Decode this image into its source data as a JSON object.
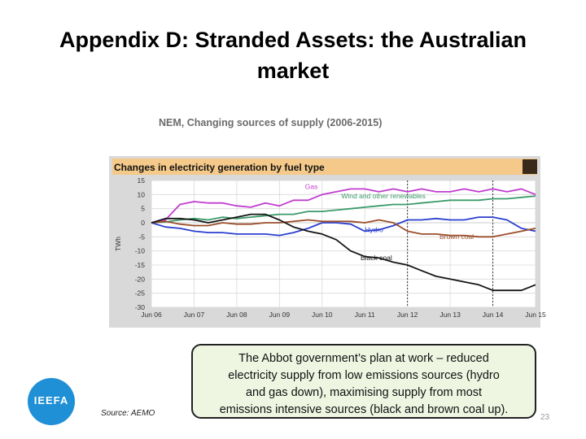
{
  "slide": {
    "title_line1": "Appendix D: Stranded Assets: the Australian",
    "title_line2": "market",
    "subtitle": "NEM, Changing sources of supply (2006-2015)",
    "callout_lines": [
      "The Abbot government’s plan at work – reduced",
      "electricity supply from low emissions sources (hydro",
      "and gas down), maximising supply from most",
      "emissions intensive sources (black and brown coal up)."
    ],
    "source": "Source: AEMO",
    "page_number": "23",
    "logo_text": "IEEFA"
  },
  "chart_data": {
    "type": "line",
    "title": "Changes in electricity generation by fuel type",
    "ylabel": "TWh",
    "xlabel": "",
    "categories": [
      "Jun 06",
      "Jun 07",
      "Jun 08",
      "Jun 09",
      "Jun 10",
      "Jun 11",
      "Jun 12",
      "Jun 13",
      "Jun 14",
      "Jun 15"
    ],
    "y_ticks": [
      15,
      10,
      5,
      0,
      -5,
      -10,
      -15,
      -20,
      -25,
      -30
    ],
    "ylim": [
      -30,
      15
    ],
    "grid": true,
    "x": [
      0,
      0.33,
      0.67,
      1,
      1.33,
      1.67,
      2,
      2.33,
      2.67,
      3,
      3.33,
      3.67,
      4,
      4.33,
      4.67,
      5,
      5.33,
      5.67,
      6,
      6.33,
      6.67,
      7,
      7.33,
      7.67,
      8,
      8.33,
      8.67,
      9
    ],
    "series": [
      {
        "name": "Gas",
        "color": "#c03ccf",
        "label_pos": [
          3.6,
          12.0
        ],
        "values": [
          0,
          1,
          6.5,
          7.5,
          7,
          7,
          6,
          5.5,
          7,
          6,
          8,
          8,
          10,
          11,
          12,
          12,
          11,
          12,
          11,
          12,
          11,
          11,
          12,
          11,
          12,
          11,
          12,
          10
        ]
      },
      {
        "name": "Wind and other renewables",
        "color": "#3a9a6a",
        "label_pos": [
          4.45,
          8.6
        ],
        "values": [
          0,
          0.3,
          1,
          1.5,
          1,
          2,
          1.5,
          2,
          2.5,
          3,
          3,
          4,
          4,
          4.5,
          5,
          5.5,
          6,
          6.5,
          6.5,
          7,
          7.5,
          8,
          8,
          8,
          8.5,
          8.5,
          9,
          9.5
        ]
      },
      {
        "name": "Hydro",
        "color": "#2a3fcf",
        "label_pos": [
          5.0,
          -3.3
        ],
        "values": [
          0,
          -1.5,
          -2,
          -3,
          -3.5,
          -3.5,
          -4,
          -4,
          -4,
          -4.5,
          -3.5,
          -2,
          0,
          0,
          -0.5,
          -3,
          -2.5,
          -1,
          1,
          1,
          1.5,
          1,
          1,
          2,
          2,
          1,
          -2,
          -3
        ]
      },
      {
        "name": "Brown coal",
        "color": "#9a4e2a",
        "label_pos": [
          6.75,
          -5.8
        ],
        "values": [
          0,
          0.5,
          -0.5,
          -1,
          -1,
          0,
          -0.5,
          -0.5,
          0,
          0,
          0.5,
          1,
          0.5,
          0.5,
          0.5,
          0,
          1,
          0,
          -3,
          -4,
          -4,
          -4.5,
          -4.5,
          -5,
          -5,
          -4,
          -3,
          -2
        ]
      },
      {
        "name": "Black coal",
        "color": "#151515",
        "label_pos": [
          4.9,
          -13.2
        ],
        "values": [
          0,
          1.5,
          1.5,
          1,
          0,
          1,
          2,
          3,
          3,
          1,
          -1.5,
          -3,
          -4,
          -6,
          -10,
          -12,
          -12.5,
          -14,
          -15,
          -17,
          -19,
          -20,
          -21,
          -22,
          -24,
          -24,
          -24,
          -22
        ]
      }
    ],
    "vlines": [
      "Jun 12",
      "Jun 14"
    ],
    "colors": {
      "plot_bg": "#ffffff",
      "frame_bg": "#d9d9d9",
      "title_band": "#f4c98a",
      "grid": "#d8d8d8",
      "vline": "#333333",
      "text": "#333333"
    }
  }
}
